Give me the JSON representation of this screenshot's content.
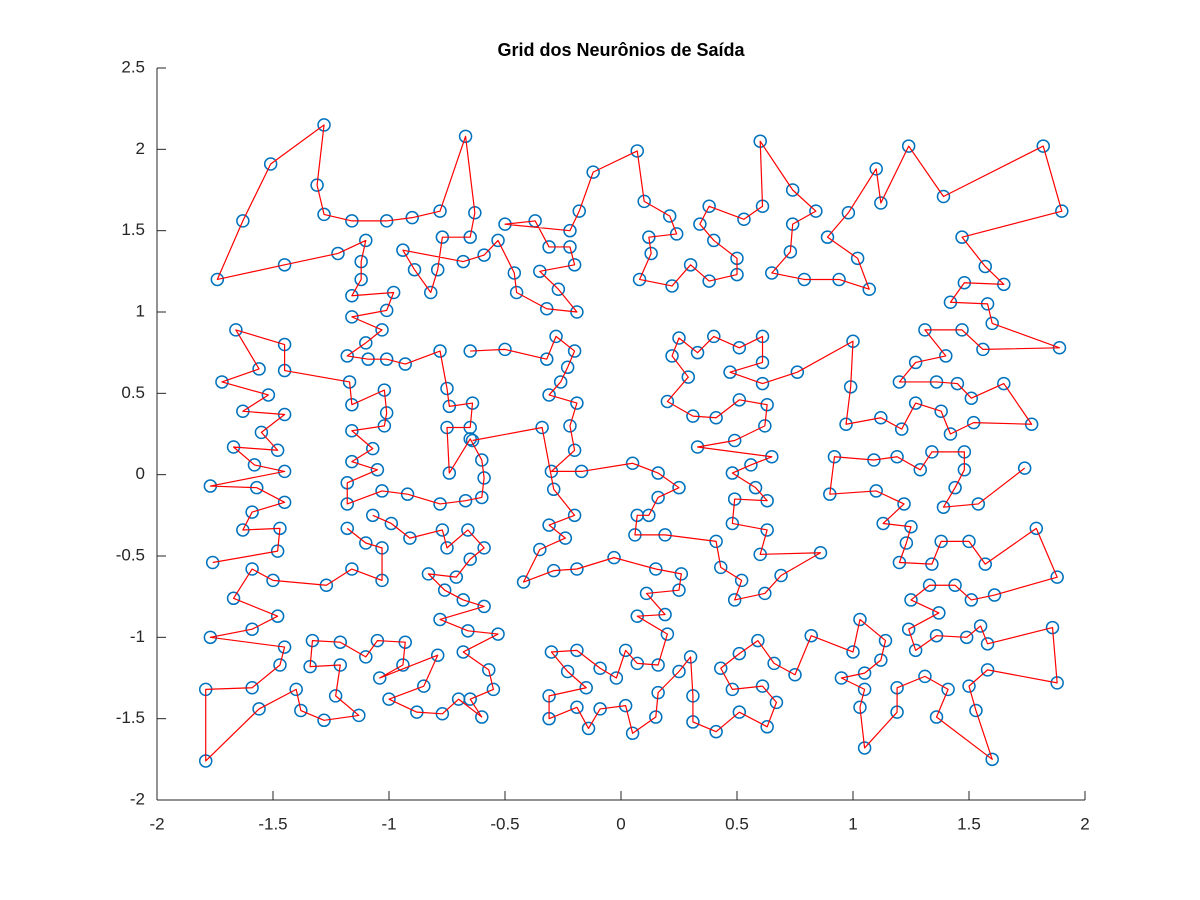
{
  "chart_data": {
    "type": "line",
    "title": "Grid dos Neurônios de Saída",
    "x": [
      -1.07,
      -0.99,
      -0.91,
      -0.77,
      -0.75,
      -0.66,
      -0.59,
      -0.65,
      -0.71,
      -0.83,
      -0.76,
      -0.68,
      -0.59,
      -0.78,
      -0.66,
      -0.53,
      -0.68,
      -0.57,
      -0.55,
      -0.65,
      -0.6,
      -0.7,
      -0.77,
      -0.88,
      -1,
      -0.85,
      -0.79,
      -1.04,
      -0.94,
      -0.93,
      -1.05,
      -1.1,
      -1.21,
      -1.33,
      -1.34,
      -1.21,
      -1.23,
      -1.13,
      -1.28,
      -1.38,
      -1.4,
      -1.56,
      -1.79,
      -1.79,
      -1.59,
      -1.47,
      -1.45,
      -1.77,
      -1.59,
      -1.48,
      -1.67,
      -1.59,
      -1.5,
      -1.27,
      -1.16,
      -1.03,
      -1.03,
      -1.1,
      -1.18,
      null,
      -1.76,
      -1.48,
      -1.47,
      -1.63,
      -1.59,
      -1.45,
      -1.57,
      -1.77,
      -1.45,
      -1.58,
      -1.67,
      -1.48,
      -1.55,
      -1.45,
      -1.63,
      -1.52,
      -1.72,
      -1.56,
      -1.66,
      -1.45,
      -1.45,
      -1.17,
      -1.16,
      -1.02,
      -1.01,
      -1.02,
      -1.16,
      -1.07,
      -1.16,
      -1.05,
      -1.18,
      -1.18,
      -1.03,
      -0.92,
      -0.78,
      -0.67,
      -0.6,
      -0.59,
      -0.6,
      -0.65,
      -0.74,
      -0.75,
      -0.65,
      -0.64,
      -0.74,
      -0.75,
      -0.78,
      -0.93,
      -1.01,
      -1.09,
      -1.18,
      -1.1,
      -1.03,
      -1.16,
      -1.01,
      -0.98,
      -1.16,
      -1.12,
      -1.12,
      -1.1,
      -1.22,
      -1.45,
      -1.74,
      -1.63,
      -1.51,
      -1.28,
      -1.31,
      -1.28,
      -1.16,
      -1.01,
      -0.9,
      -0.78,
      -0.67,
      -0.63,
      -0.65,
      -0.77,
      -0.79,
      -0.82,
      -0.89,
      -0.94,
      -0.68,
      -0.59,
      -0.53,
      -0.46,
      -0.45,
      -0.32,
      -0.19,
      -0.27,
      -0.35,
      -0.2,
      -0.22,
      -0.31,
      -0.37,
      -0.5,
      -0.22,
      -0.18,
      -0.12,
      0.07,
      0.1,
      0.21,
      0.24,
      0.12,
      0.13,
      0.08,
      0.22,
      0.3,
      0.38,
      0.5,
      0.5,
      0.4,
      0.34,
      0.38,
      0.53,
      0.61,
      0.6,
      0.74,
      0.84,
      0.74,
      0.73,
      0.65,
      0.79,
      0.94,
      1.07,
      1.02,
      0.89,
      0.98,
      1.1,
      1.12,
      1.24,
      1.39,
      1.82,
      1.9,
      1.47,
      1.57,
      1.65,
      1.48,
      1.42,
      1.58,
      1.6,
      1.89,
      1.56,
      1.47,
      1.31,
      1.4,
      1.27,
      1.2,
      1.36,
      1.45,
      1.51,
      1.65,
      1.77,
      1.52,
      1.42,
      1.38,
      1.27,
      1.21,
      1.12,
      0.97,
      0.99,
      1,
      0.76,
      0.61,
      0.47,
      0.61,
      0.61,
      0.51,
      0.4,
      0.33,
      0.25,
      0.22,
      0.29,
      0.2,
      0.31,
      0.41,
      0.51,
      0.63,
      0.62,
      0.49,
      0.33,
      0.65,
      0.56,
      0.48,
      0.58,
      0.63,
      0.49,
      0.48,
      0.63,
      0.6,
      0.86,
      0.69,
      0.62,
      0.49,
      0.52,
      0.43,
      0.41,
      0.19,
      0.06,
      0.07,
      0.12,
      0.16,
      0.25,
      0.16,
      0.05,
      -0.17,
      -0.3,
      -0.2,
      -0.22,
      -0.19,
      -0.31,
      -0.26,
      -0.23,
      -0.2,
      -0.28,
      -0.32,
      -0.5,
      -0.65,
      null,
      -0.64,
      -0.34,
      -0.29,
      -0.2,
      -0.31,
      -0.24,
      -0.35,
      -0.42,
      -0.29,
      -0.19,
      -0.03,
      0.15,
      0.26,
      0.25,
      0.11,
      0.19,
      0.07,
      0.2,
      0.16,
      0.07,
      0.02,
      -0.02,
      -0.09,
      -0.19,
      -0.3,
      -0.23,
      -0.15,
      -0.31,
      -0.31,
      -0.19,
      -0.14,
      -0.09,
      0.02,
      0.05,
      0.15,
      0.16,
      0.25,
      0.3,
      0.31,
      0.31,
      0.41,
      0.51,
      0.63,
      0.67,
      0.61,
      0.48,
      0.43,
      0.51,
      0.59,
      0.66,
      0.75,
      0.82,
      1,
      1.03,
      1.14,
      1.12,
      1.05,
      0.95,
      1.05,
      1.03,
      1.05,
      1.19,
      1.19,
      1.31,
      1.41,
      1.36,
      1.6,
      1.53,
      1.5,
      1.58,
      1.88,
      1.86,
      1.58,
      1.55,
      1.49,
      1.36,
      1.27,
      1.24,
      1.37,
      1.25,
      1.33,
      1.44,
      1.51,
      1.61,
      1.88,
      1.79,
      1.57,
      1.5,
      1.38,
      1.34,
      1.2,
      1.23,
      1.25,
      1.13,
      1.22,
      1.1,
      0.9,
      0.92,
      1.09,
      1.19,
      1.29,
      1.34,
      1.48,
      1.48,
      1.44,
      1.39,
      1.54,
      1.74
    ],
    "series": [
      {
        "color": "#ff0000",
        "marker_color": "#0072bd",
        "values": [
          -0.25,
          -0.3,
          -0.39,
          -0.34,
          -0.45,
          -0.34,
          -0.45,
          -0.52,
          -0.63,
          -0.61,
          -0.71,
          -0.77,
          -0.81,
          -0.89,
          -0.96,
          -0.98,
          -1.09,
          -1.2,
          -1.32,
          -1.38,
          -1.49,
          -1.38,
          -1.47,
          -1.46,
          -1.38,
          -1.3,
          -1.11,
          -1.25,
          -1.17,
          -1.03,
          -1.02,
          -1.12,
          -1.03,
          -1.02,
          -1.18,
          -1.17,
          -1.36,
          -1.48,
          -1.51,
          -1.45,
          -1.32,
          -1.44,
          -1.76,
          -1.32,
          -1.31,
          -1.17,
          -1.06,
          -1,
          -0.95,
          -0.87,
          -0.76,
          -0.58,
          -0.65,
          -0.68,
          -0.58,
          -0.65,
          -0.45,
          -0.42,
          -0.33,
          null,
          -0.54,
          -0.47,
          -0.33,
          -0.34,
          -0.23,
          -0.17,
          -0.08,
          -0.07,
          0.02,
          0.06,
          0.17,
          0.15,
          0.26,
          0.37,
          0.39,
          0.49,
          0.57,
          0.65,
          0.89,
          0.8,
          0.64,
          0.57,
          0.43,
          0.52,
          0.38,
          0.3,
          0.27,
          0.16,
          0.08,
          0.03,
          -0.05,
          -0.18,
          -0.1,
          -0.12,
          -0.18,
          -0.16,
          -0.14,
          -0.02,
          0.09,
          0.22,
          0.01,
          0.29,
          0.29,
          0.44,
          0.42,
          0.53,
          0.76,
          0.68,
          0.71,
          0.71,
          0.73,
          0.81,
          0.89,
          0.97,
          1.01,
          1.12,
          1.1,
          1.2,
          1.31,
          1.44,
          1.36,
          1.29,
          1.2,
          1.56,
          1.91,
          2.15,
          1.78,
          1.6,
          1.56,
          1.56,
          1.58,
          1.62,
          2.08,
          1.61,
          1.46,
          1.46,
          1.26,
          1.12,
          1.26,
          1.38,
          1.31,
          1.35,
          1.44,
          1.24,
          1.12,
          1.02,
          1,
          1.14,
          1.25,
          1.29,
          1.4,
          1.4,
          1.56,
          1.54,
          1.5,
          1.62,
          1.86,
          1.99,
          1.68,
          1.59,
          1.48,
          1.46,
          1.36,
          1.2,
          1.16,
          1.29,
          1.19,
          1.23,
          1.33,
          1.44,
          1.54,
          1.65,
          1.57,
          1.65,
          2.05,
          1.75,
          1.62,
          1.54,
          1.37,
          1.24,
          1.2,
          1.2,
          1.14,
          1.33,
          1.46,
          1.61,
          1.88,
          1.67,
          2.02,
          1.71,
          2.02,
          1.62,
          1.46,
          1.28,
          1.17,
          1.18,
          1.06,
          1.05,
          0.93,
          0.78,
          0.77,
          0.89,
          0.89,
          0.73,
          0.69,
          0.57,
          0.57,
          0.56,
          0.47,
          0.56,
          0.31,
          0.32,
          0.25,
          0.39,
          0.44,
          0.28,
          0.35,
          0.31,
          0.54,
          0.82,
          0.63,
          0.56,
          0.63,
          0.69,
          0.85,
          0.78,
          0.85,
          0.75,
          0.84,
          0.73,
          0.6,
          0.45,
          0.36,
          0.35,
          0.46,
          0.43,
          0.3,
          0.21,
          0.17,
          0.11,
          0.06,
          0.01,
          -0.08,
          -0.16,
          -0.15,
          -0.3,
          -0.34,
          -0.49,
          -0.48,
          -0.62,
          -0.73,
          -0.77,
          -0.65,
          -0.57,
          -0.41,
          -0.37,
          -0.37,
          -0.25,
          -0.25,
          -0.14,
          -0.08,
          0.01,
          0.07,
          0.02,
          0.02,
          0.15,
          0.3,
          0.44,
          0.49,
          0.57,
          0.66,
          0.76,
          0.85,
          0.71,
          0.77,
          0.76,
          null,
          0.21,
          0.29,
          -0.09,
          -0.25,
          -0.31,
          -0.39,
          -0.46,
          -0.66,
          -0.59,
          -0.58,
          -0.51,
          -0.58,
          -0.61,
          -0.71,
          -0.73,
          -0.86,
          -0.87,
          -0.98,
          -1.17,
          -1.16,
          -1.08,
          -1.25,
          -1.19,
          -1.08,
          -1.09,
          -1.21,
          -1.31,
          -1.36,
          -1.5,
          -1.43,
          -1.56,
          -1.44,
          -1.42,
          -1.59,
          -1.49,
          -1.34,
          -1.21,
          -1.12,
          -1.36,
          -1.52,
          -1.58,
          -1.46,
          -1.55,
          -1.4,
          -1.3,
          -1.32,
          -1.19,
          -1.1,
          -1.02,
          -1.16,
          -1.23,
          -0.99,
          -1.09,
          -0.89,
          -1.02,
          -1.14,
          -1.22,
          -1.25,
          -1.32,
          -1.43,
          -1.68,
          -1.46,
          -1.31,
          -1.24,
          -1.32,
          -1.49,
          -1.75,
          -1.45,
          -1.3,
          -1.2,
          -1.28,
          -0.94,
          -1.04,
          -0.93,
          -1,
          -0.99,
          -1.08,
          -0.95,
          -0.85,
          -0.77,
          -0.68,
          -0.68,
          -0.77,
          -0.74,
          -0.63,
          -0.33,
          -0.55,
          -0.41,
          -0.41,
          -0.55,
          -0.54,
          -0.42,
          -0.32,
          -0.3,
          -0.18,
          -0.1,
          -0.12,
          0.11,
          0.09,
          0.11,
          0.03,
          0.14,
          0.14,
          0.03,
          -0.08,
          -0.2,
          -0.18,
          0.04
        ]
      }
    ],
    "xlim": [
      -2,
      2
    ],
    "xticks": [
      -2,
      -1.5,
      -1,
      -0.5,
      0,
      0.5,
      1,
      1.5,
      2
    ],
    "ylim": [
      -2,
      2.5
    ],
    "yticks": [
      -2,
      -1.5,
      -1,
      -0.5,
      0,
      0.5,
      1,
      1.5,
      2,
      2.5
    ],
    "grid": false
  }
}
